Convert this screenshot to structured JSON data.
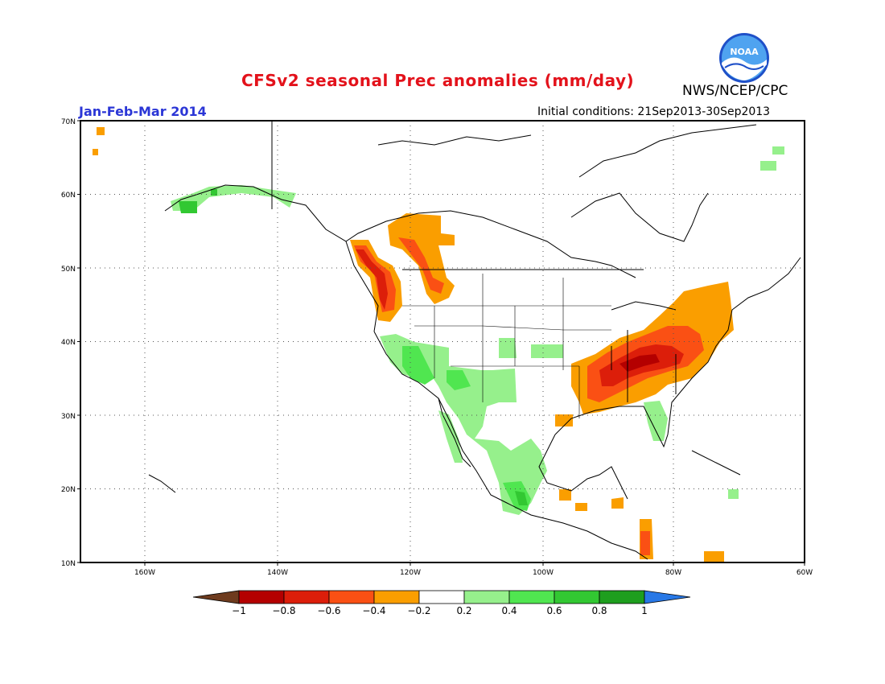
{
  "header": {
    "title": "CFSv2 seasonal Prec anomalies (mm/day)",
    "period": "Jan-Feb-Mar 2014",
    "initial_conditions": "Initial conditions: 21Sep2013-30Sep2013",
    "agency": "NWS/NCEP/CPC",
    "logo_text": "NOAA"
  },
  "map": {
    "lon_range": [
      -172,
      -60
    ],
    "lat_range": [
      10,
      70
    ],
    "lat_ticks": [
      "10N",
      "20N",
      "30N",
      "40N",
      "50N",
      "60N",
      "70N"
    ],
    "lon_ticks": [
      "160W",
      "140W",
      "120W",
      "100W",
      "80W",
      "60W"
    ],
    "grid": "dotted"
  },
  "colorbar": {
    "labels": [
      "-1",
      "-0.8",
      "-0.6",
      "-0.4",
      "-0.2",
      "0.2",
      "0.4",
      "0.6",
      "0.8",
      "1"
    ],
    "colors": [
      "#6e3b1e",
      "#b40000",
      "#dc1e0a",
      "#fa5014",
      "#fa9e00",
      "#ffffff",
      "#96f08c",
      "#50e650",
      "#32c832",
      "#1e9e1e",
      "#2878e6"
    ]
  },
  "anomaly_regions": [
    {
      "name": "pacific-northwest-dry",
      "category": "-0.6"
    },
    {
      "name": "pacific-northwest-core",
      "category": "-0.8"
    },
    {
      "name": "northern-rockies-dry",
      "category": "-0.4"
    },
    {
      "name": "ohio-valley-tennessee-dry",
      "category": "-0.4"
    },
    {
      "name": "ohio-valley-core",
      "category": "-0.6"
    },
    {
      "name": "tennessee-core",
      "category": "-0.8"
    },
    {
      "name": "northeast-dry",
      "category": "-0.4"
    },
    {
      "name": "california-southwest-wet",
      "category": "0.2"
    },
    {
      "name": "southwest-core-wet",
      "category": "0.4"
    },
    {
      "name": "mexico-pacific-wet",
      "category": "0.2"
    },
    {
      "name": "mexico-southwest-core",
      "category": "0.4"
    },
    {
      "name": "florida-wet",
      "category": "0.2"
    },
    {
      "name": "alaska-wet",
      "category": "0.2"
    },
    {
      "name": "central-america-dry",
      "category": "-0.4"
    }
  ]
}
